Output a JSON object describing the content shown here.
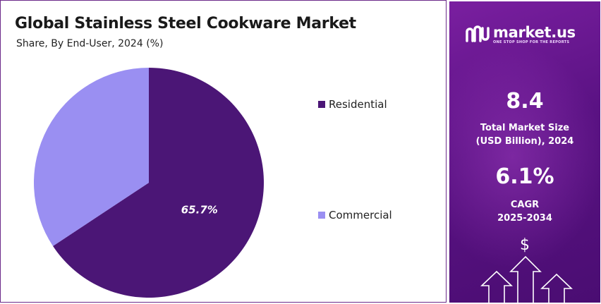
{
  "chart_data": {
    "type": "pie",
    "title": "Global Stainless Steel Cookware Market",
    "subtitle": "Share, By End-User, 2024 (%)",
    "slices": [
      {
        "label": "Residential",
        "value": 65.7,
        "color": "#4b1676",
        "data_label": "65.7%"
      },
      {
        "label": "Commercial",
        "value": 34.3,
        "color": "#9a8ff2",
        "data_label": ""
      }
    ],
    "legend_position": "right"
  },
  "brand": {
    "name": "market.us",
    "tagline": "ONE STOP SHOP FOR THE REPORTS"
  },
  "stats": {
    "market_size_value": "8.4",
    "market_size_label_line1": "Total Market Size",
    "market_size_label_line2": "(USD Billion), 2024",
    "cagr_value": "6.1%",
    "cagr_label_line1": "CAGR",
    "cagr_label_line2": "2025-2034"
  },
  "icons": {
    "dollar": "$"
  },
  "colors": {
    "panel_top": "#7a1fa0",
    "panel_bottom": "#4a0d72",
    "residential": "#4b1676",
    "commercial": "#9a8ff2"
  }
}
